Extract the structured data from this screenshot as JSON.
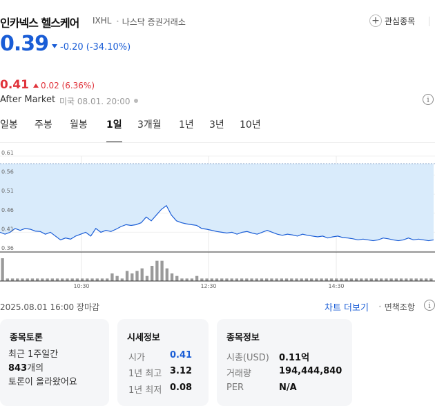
{
  "header": {
    "stock_name": "인카넥스 헬스케어",
    "ticker": "IXHL",
    "exchange": "나스닥 증권거래소",
    "watch_label": "관심종목"
  },
  "price": {
    "current": "0.39",
    "change": "-0.20 (-34.10%)",
    "color": "#1a5dd6"
  },
  "after_market": {
    "price": "0.41",
    "change": "0.02 (6.36%)",
    "label": "After Market",
    "time": "미국 08.01. 20:00",
    "color": "#e0323a"
  },
  "period_tabs": [
    {
      "label": "일봉",
      "active": false
    },
    {
      "label": "주봉",
      "active": false
    },
    {
      "label": "월봉",
      "active": false
    },
    {
      "label": "1일",
      "active": true
    },
    {
      "label": "3개월",
      "active": false
    },
    {
      "label": "1년",
      "active": false
    },
    {
      "label": "3년",
      "active": false
    },
    {
      "label": "10년",
      "active": false
    }
  ],
  "chart_data": {
    "type": "area",
    "y_ticks": [
      "0.61",
      "0.56",
      "0.51",
      "0.46",
      "0.41",
      "0.36"
    ],
    "ylim": [
      0.36,
      0.61
    ],
    "previous_close": 0.59,
    "x_ticks": [
      "10:30",
      "12:30",
      "14:30"
    ],
    "series": [
      {
        "values": [
          0.41,
          0.405,
          0.41,
          0.42,
          0.415,
          0.42,
          0.418,
          0.413,
          0.412,
          0.405,
          0.41,
          0.4,
          0.39,
          0.395,
          0.392,
          0.4,
          0.405,
          0.41,
          0.4,
          0.42,
          0.41,
          0.415,
          0.412,
          0.418,
          0.425,
          0.43,
          0.428,
          0.43,
          0.435,
          0.45,
          0.44,
          0.455,
          0.47,
          0.48,
          0.455,
          0.44,
          0.435,
          0.432,
          0.43,
          0.428,
          0.42,
          0.418,
          0.415,
          0.412,
          0.41,
          0.408,
          0.41,
          0.405,
          0.41,
          0.412,
          0.408,
          0.405,
          0.41,
          0.415,
          0.41,
          0.405,
          0.402,
          0.405,
          0.403,
          0.4,
          0.405,
          0.402,
          0.4,
          0.398,
          0.4,
          0.395,
          0.398,
          0.4,
          0.396,
          0.395,
          0.393,
          0.39,
          0.392,
          0.39,
          0.388,
          0.39,
          0.395,
          0.393,
          0.39,
          0.388,
          0.39,
          0.395,
          0.39,
          0.392,
          0.39,
          0.388,
          0.39
        ],
        "volume": [
          9,
          1,
          1,
          1,
          1,
          1,
          1,
          1,
          1,
          1,
          1,
          1,
          1,
          1,
          1,
          1,
          1,
          1,
          1,
          1,
          1,
          1,
          3,
          2,
          1,
          4,
          3,
          4,
          5,
          2,
          6,
          8,
          8,
          5,
          3,
          2,
          1,
          1,
          1,
          2,
          1,
          1,
          1,
          1,
          1,
          1,
          1,
          1,
          1,
          1,
          1,
          1,
          1,
          1,
          1,
          1,
          1,
          1,
          1,
          1,
          1,
          1,
          1,
          1,
          1,
          1,
          1,
          1,
          1,
          1,
          1,
          1,
          1,
          1,
          1,
          1,
          1,
          1,
          1,
          1,
          1,
          1,
          1,
          1,
          1,
          1,
          1
        ]
      }
    ],
    "color": "#1a5dd6",
    "fill": "#d9ebfb",
    "grid": true
  },
  "footer": {
    "date": "2025.08.01 16:00 장마감",
    "chart_more": "차트 더보기",
    "disclaimer": "면책조항"
  },
  "cards": {
    "discussion": {
      "title": "종목토론",
      "line1": "최근 1주일간",
      "count": "843",
      "count_suffix": "개의",
      "line3": "토론이 올라왔어요"
    },
    "market_info": {
      "title": "시세정보",
      "open_label": "시가",
      "open_value": "0.41",
      "high_label": "1년 최고",
      "high_value": "3.12",
      "low_label": "1년 최저",
      "low_value": "0.08"
    },
    "stock_info": {
      "title": "종목정보",
      "mcap_label": "시총(USD)",
      "mcap_value": "0.11억",
      "volume_label": "거래량",
      "volume_value": "194,444,840",
      "per_label": "PER",
      "per_value": "N/A"
    }
  }
}
